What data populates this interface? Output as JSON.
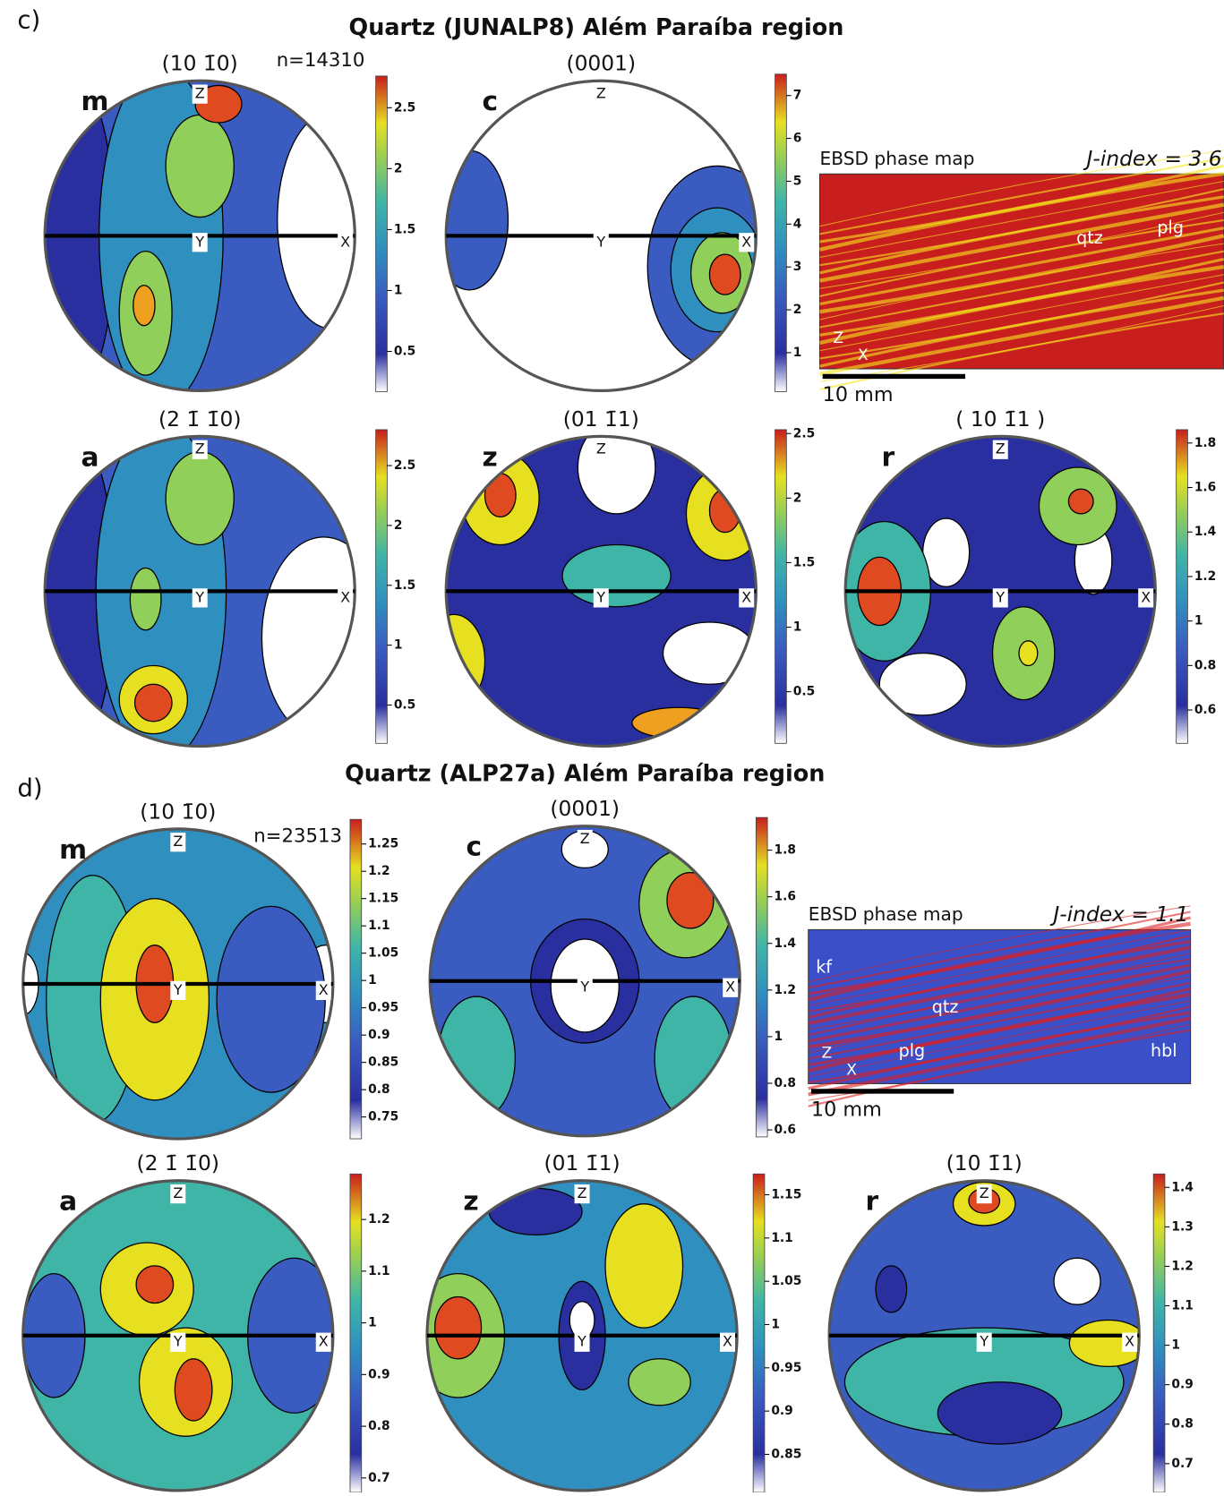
{
  "axes": [
    "Z",
    "Y",
    "X"
  ],
  "sections": [
    {
      "label": "c)",
      "title": "Quartz (JUNALP8) Além Paraíba region",
      "n": "n=14310",
      "figures": [
        {
          "letter": "m",
          "plane": "(10 1̄0)",
          "colorbar": {
            "range": [
              0.17,
              2.76
            ],
            "ticks": [
              0.5,
              1,
              1.5,
              2,
              2.5
            ]
          }
        },
        {
          "letter": "c",
          "plane": "(0001)",
          "colorbar": {
            "range": [
              0.09,
              7.5
            ],
            "ticks": [
              1,
              2,
              3,
              4,
              5,
              6,
              7
            ]
          }
        },
        {
          "letter": "a",
          "plane": "(2 1̄ 1̄0)",
          "colorbar": {
            "range": [
              0.18,
              2.8
            ],
            "ticks": [
              0.5,
              1,
              1.5,
              2,
              2.5
            ]
          }
        },
        {
          "letter": "z",
          "plane": "(01 1̄1)",
          "colorbar": {
            "range": [
              0.1,
              2.53
            ],
            "ticks": [
              0.5,
              1,
              1.5,
              2,
              2.5
            ]
          }
        },
        {
          "letter": "r",
          "plane": "( 10 1̄1 )",
          "colorbar": {
            "range": [
              0.45,
              1.86
            ],
            "ticks": [
              0.6,
              0.8,
              1,
              1.2,
              1.4,
              1.6,
              1.8
            ]
          }
        }
      ],
      "map": {
        "title": "EBSD phase map",
        "jindex": "J-index = 3.6",
        "labels": [
          "qtz",
          "plg"
        ],
        "scale": "10 mm"
      }
    },
    {
      "label": "d)",
      "title": "Quartz (ALP27a) Além Paraíba region",
      "n": "n=23513",
      "figures": [
        {
          "letter": "m",
          "plane": "(10 1̄0)",
          "colorbar": {
            "range": [
              0.71,
              1.295
            ],
            "ticks": [
              0.75,
              0.8,
              0.85,
              0.9,
              0.95,
              1,
              1.05,
              1.1,
              1.15,
              1.2,
              1.25
            ]
          }
        },
        {
          "letter": "c",
          "plane": "(0001)",
          "colorbar": {
            "range": [
              0.57,
              1.94
            ],
            "ticks": [
              0.6,
              0.8,
              1,
              1.2,
              1.4,
              1.6,
              1.8
            ]
          }
        },
        {
          "letter": "a",
          "plane": "(2 1̄ 1̄0)",
          "colorbar": {
            "range": [
              0.672,
              1.288
            ],
            "ticks": [
              0.7,
              0.8,
              0.9,
              1,
              1.1,
              1.2
            ]
          }
        },
        {
          "letter": "z",
          "plane": "(01 1̄1)",
          "colorbar": {
            "range": [
              0.806,
              1.174
            ],
            "ticks": [
              0.85,
              0.9,
              0.95,
              1,
              1.05,
              1.1,
              1.15
            ]
          }
        },
        {
          "letter": "r",
          "plane": "(10 1̄1)",
          "colorbar": {
            "range": [
              0.627,
              1.434
            ],
            "ticks": [
              0.7,
              0.8,
              0.9,
              1,
              1.1,
              1.2,
              1.3,
              1.4
            ]
          }
        }
      ],
      "map": {
        "title": "EBSD phase map",
        "jindex": "J-index = 1.1",
        "labels": [
          "kf",
          "qtz",
          "plg",
          "hbl"
        ],
        "scale": "10 mm"
      }
    }
  ]
}
